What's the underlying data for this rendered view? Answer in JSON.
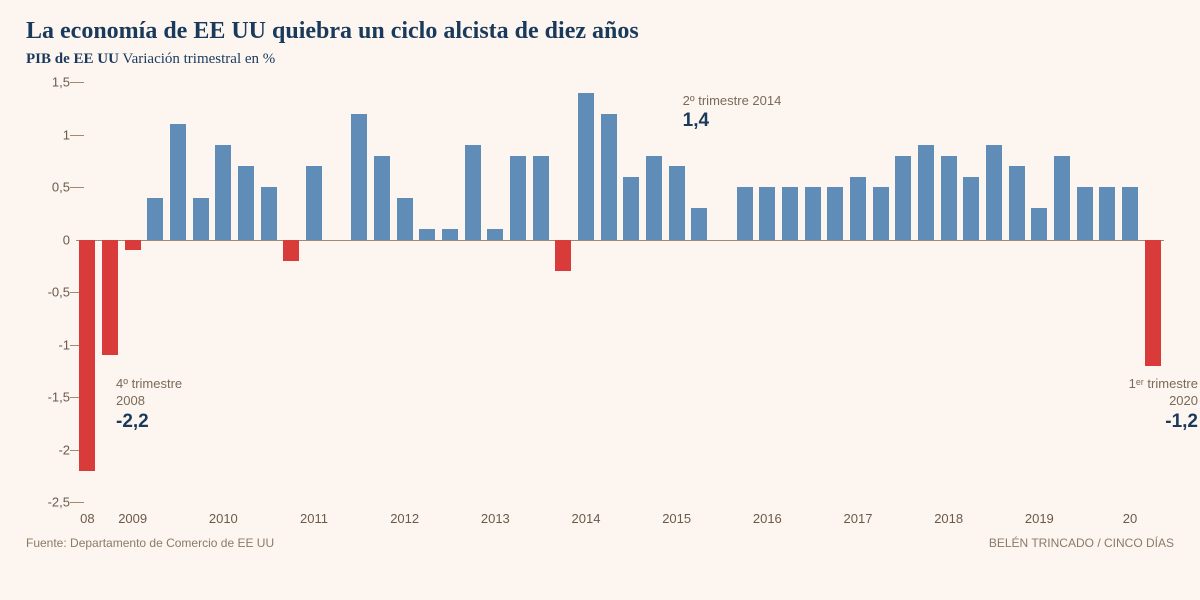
{
  "title": "La economía de EE UU quiebra un ciclo alcista de diez años",
  "subtitle_bold": "PIB de EE UU",
  "subtitle_rest": " Variación trimestral en %",
  "chart": {
    "type": "bar",
    "ylim": [
      -2.5,
      1.5
    ],
    "ytick_step": 0.5,
    "yticks": [
      "1,5",
      "1",
      "0,5",
      "0",
      "-0,5",
      "-1",
      "-1,5",
      "-2",
      "-2,5"
    ],
    "ytick_values": [
      1.5,
      1,
      0.5,
      0,
      -0.5,
      -1,
      -1.5,
      -2,
      -2.5
    ],
    "xlabels": [
      {
        "text": "08",
        "at": 0
      },
      {
        "text": "2009",
        "at": 2
      },
      {
        "text": "2010",
        "at": 6
      },
      {
        "text": "2011",
        "at": 10
      },
      {
        "text": "2012",
        "at": 14
      },
      {
        "text": "2013",
        "at": 18
      },
      {
        "text": "2014",
        "at": 22
      },
      {
        "text": "2015",
        "at": 26
      },
      {
        "text": "2016",
        "at": 30
      },
      {
        "text": "2017",
        "at": 34
      },
      {
        "text": "2018",
        "at": 38
      },
      {
        "text": "2019",
        "at": 42
      },
      {
        "text": "20",
        "at": 46
      }
    ],
    "bar_width_ratio": 0.72,
    "positive_color": "#5f8db8",
    "negative_color": "#d93a3a",
    "grid_color": "#d8c8b8",
    "zero_color": "#a08a75",
    "background_color": "#fdf6f0",
    "values": [
      -2.2,
      -1.1,
      -0.1,
      0.4,
      1.1,
      0.4,
      0.9,
      0.7,
      0.5,
      -0.2,
      0.7,
      0.0,
      1.2,
      0.8,
      0.4,
      0.1,
      0.1,
      0.9,
      0.1,
      0.8,
      0.8,
      -0.3,
      1.4,
      1.2,
      0.6,
      0.8,
      0.7,
      0.3,
      0.0,
      0.5,
      0.5,
      0.5,
      0.5,
      0.5,
      0.6,
      0.5,
      0.8,
      0.9,
      0.8,
      0.6,
      0.9,
      0.7,
      0.3,
      0.8,
      0.5,
      0.5,
      0.5,
      -1.2
    ],
    "annotations": [
      {
        "label_line1": "4º trimestre",
        "label_line2": "2008",
        "value": "-2,2",
        "x_index": 1,
        "y_anchor": -1.3,
        "align": "left"
      },
      {
        "label_line1": "2º trimestre 2014",
        "label_line2": "",
        "value": "1,4",
        "x_index": 26,
        "y_anchor": 1.4,
        "align": "left"
      },
      {
        "label_line1": "1ᵉʳ trimestre",
        "label_line2": "2020",
        "value": "-1,2",
        "x_index": 47,
        "y_anchor": -1.3,
        "align": "right"
      }
    ]
  },
  "footer_left": "Fuente: Departamento de Comercio de EE UU",
  "footer_right": "BELÉN TRINCADO / CINCO DÍAS"
}
